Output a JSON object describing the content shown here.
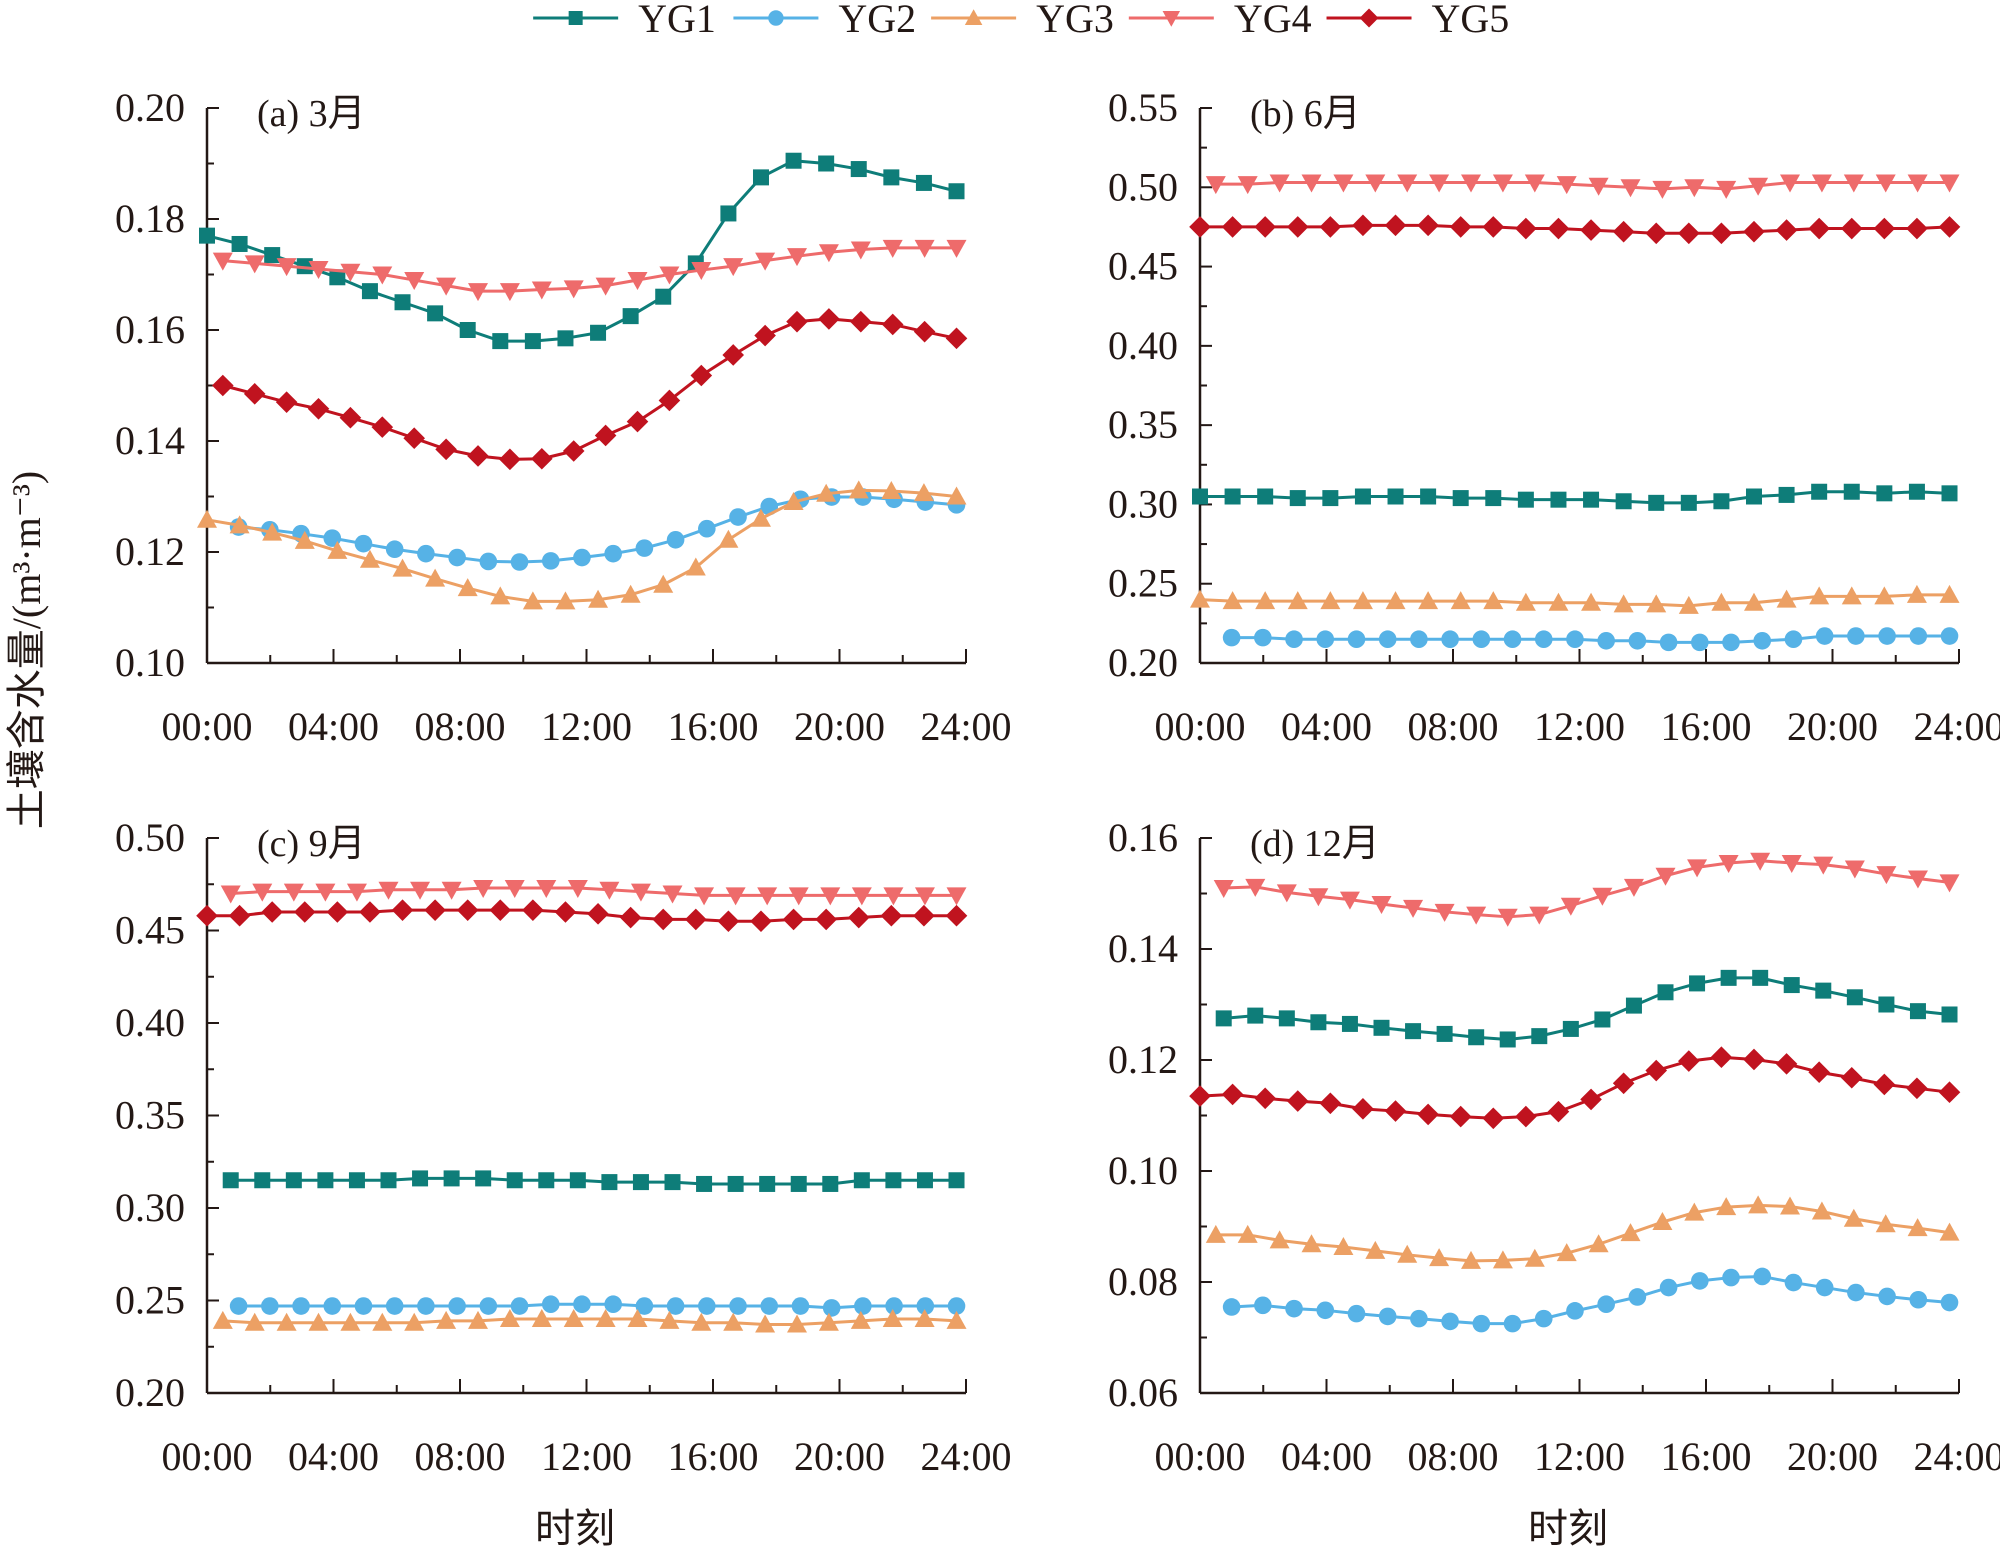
{
  "chart_data": {
    "type": "line",
    "figure": "4-panel diurnal soil moisture comparison",
    "ylabel": "土壤含水量/(m³·m⁻³)",
    "xlabel": "时刻",
    "legend_position": "top-center",
    "legend": [
      {
        "name": "YG1",
        "color": "#0e7d79",
        "marker": "square"
      },
      {
        "name": "YG2",
        "color": "#56b2e6",
        "marker": "circle"
      },
      {
        "name": "YG3",
        "color": "#eca064",
        "marker": "triangle-up"
      },
      {
        "name": "YG4",
        "color": "#ee6b6b",
        "marker": "triangle-down"
      },
      {
        "name": "YG5",
        "color": "#c0131f",
        "marker": "diamond"
      }
    ],
    "x_tick_labels": [
      "00:00",
      "04:00",
      "08:00",
      "12:00",
      "16:00",
      "20:00",
      "24:00"
    ],
    "x_range_hours": [
      0,
      24
    ],
    "panels": [
      {
        "title": "(a) 3月",
        "ylim": [
          0.1,
          0.2
        ],
        "y_ticks": [
          "0.10",
          "0.12",
          "0.14",
          "0.16",
          "0.18",
          "0.20"
        ],
        "y_tick_values": [
          0.1,
          0.12,
          0.14,
          0.16,
          0.18,
          0.2
        ],
        "series": [
          {
            "name": "YG1",
            "x_start": 0.0,
            "values": [
              0.177,
              0.1755,
              0.1735,
              0.1715,
              0.1695,
              0.167,
              0.165,
              0.163,
              0.16,
              0.158,
              0.158,
              0.1585,
              0.1595,
              0.1625,
              0.166,
              0.172,
              0.181,
              0.1875,
              0.1905,
              0.19,
              0.189,
              0.1875,
              0.1865,
              0.185
            ]
          },
          {
            "name": "YG2",
            "x_start": 1.0,
            "values": [
              0.1245,
              0.124,
              0.1233,
              0.1225,
              0.1215,
              0.1205,
              0.1197,
              0.119,
              0.1183,
              0.1182,
              0.1184,
              0.119,
              0.1197,
              0.1207,
              0.1222,
              0.1242,
              0.1263,
              0.1282,
              0.1295,
              0.1299,
              0.1299,
              0.1295,
              0.129,
              0.1285
            ]
          },
          {
            "name": "YG3",
            "x_start": 0.0,
            "values": [
              0.1258,
              0.1248,
              0.1235,
              0.122,
              0.1202,
              0.1186,
              0.117,
              0.1152,
              0.1135,
              0.112,
              0.1111,
              0.1111,
              0.1114,
              0.1123,
              0.1141,
              0.1172,
              0.1222,
              0.126,
              0.129,
              0.1305,
              0.1311,
              0.131,
              0.1306,
              0.13
            ]
          },
          {
            "name": "YG4",
            "x_start": 0.5,
            "values": [
              0.1725,
              0.172,
              0.1715,
              0.171,
              0.1705,
              0.17,
              0.169,
              0.168,
              0.167,
              0.167,
              0.1673,
              0.1675,
              0.168,
              0.169,
              0.17,
              0.1708,
              0.1715,
              0.1725,
              0.1733,
              0.174,
              0.1745,
              0.1748,
              0.1748,
              0.1748
            ]
          },
          {
            "name": "YG5",
            "x_start": 0.5,
            "values": [
              0.15,
              0.1485,
              0.147,
              0.1458,
              0.1442,
              0.1425,
              0.1405,
              0.1385,
              0.1373,
              0.1367,
              0.1368,
              0.1382,
              0.141,
              0.1435,
              0.1473,
              0.1518,
              0.1555,
              0.159,
              0.1615,
              0.162,
              0.1615,
              0.161,
              0.1597,
              0.1585
            ]
          }
        ]
      },
      {
        "title": "(b) 6月",
        "ylim": [
          0.2,
          0.55
        ],
        "y_ticks": [
          "0.20",
          "0.25",
          "0.30",
          "0.35",
          "0.40",
          "0.45",
          "0.50",
          "0.55"
        ],
        "y_tick_values": [
          0.2,
          0.25,
          0.3,
          0.35,
          0.4,
          0.45,
          0.5,
          0.55
        ],
        "series": [
          {
            "name": "YG1",
            "x_start": 0.0,
            "values": [
              0.305,
              0.305,
              0.305,
              0.304,
              0.304,
              0.305,
              0.305,
              0.305,
              0.304,
              0.304,
              0.303,
              0.303,
              0.303,
              0.302,
              0.301,
              0.301,
              0.302,
              0.305,
              0.306,
              0.308,
              0.308,
              0.307,
              0.308,
              0.307
            ]
          },
          {
            "name": "YG2",
            "x_start": 1.0,
            "values": [
              0.216,
              0.216,
              0.215,
              0.215,
              0.215,
              0.215,
              0.215,
              0.215,
              0.215,
              0.215,
              0.215,
              0.215,
              0.214,
              0.214,
              0.213,
              0.213,
              0.213,
              0.214,
              0.215,
              0.217,
              0.217,
              0.217,
              0.217,
              0.217
            ]
          },
          {
            "name": "YG3",
            "x_start": 0.0,
            "values": [
              0.24,
              0.239,
              0.239,
              0.239,
              0.239,
              0.239,
              0.239,
              0.239,
              0.239,
              0.239,
              0.238,
              0.238,
              0.238,
              0.237,
              0.237,
              0.236,
              0.238,
              0.238,
              0.24,
              0.242,
              0.242,
              0.242,
              0.243,
              0.243
            ]
          },
          {
            "name": "YG4",
            "x_start": 0.5,
            "values": [
              0.502,
              0.502,
              0.503,
              0.503,
              0.503,
              0.503,
              0.503,
              0.503,
              0.503,
              0.503,
              0.503,
              0.502,
              0.501,
              0.5,
              0.499,
              0.5,
              0.499,
              0.501,
              0.503,
              0.503,
              0.503,
              0.503,
              0.503,
              0.503
            ]
          },
          {
            "name": "YG5",
            "x_start": 0.0,
            "values": [
              0.475,
              0.475,
              0.475,
              0.475,
              0.475,
              0.476,
              0.476,
              0.476,
              0.475,
              0.475,
              0.474,
              0.474,
              0.473,
              0.472,
              0.471,
              0.471,
              0.471,
              0.472,
              0.473,
              0.474,
              0.474,
              0.474,
              0.474,
              0.475
            ]
          }
        ]
      },
      {
        "title": "(c) 9月",
        "ylim": [
          0.2,
          0.5
        ],
        "y_ticks": [
          "0.20",
          "0.25",
          "0.30",
          "0.35",
          "0.40",
          "0.45",
          "0.50"
        ],
        "y_tick_values": [
          0.2,
          0.25,
          0.3,
          0.35,
          0.4,
          0.45,
          0.5
        ],
        "series": [
          {
            "name": "YG1",
            "x_start": 0.75,
            "values": [
              0.315,
              0.315,
              0.315,
              0.315,
              0.315,
              0.315,
              0.316,
              0.316,
              0.316,
              0.315,
              0.315,
              0.315,
              0.314,
              0.314,
              0.314,
              0.313,
              0.313,
              0.313,
              0.313,
              0.313,
              0.315,
              0.315,
              0.315,
              0.315
            ]
          },
          {
            "name": "YG2",
            "x_start": 1.0,
            "values": [
              0.247,
              0.247,
              0.247,
              0.247,
              0.247,
              0.247,
              0.247,
              0.247,
              0.247,
              0.247,
              0.248,
              0.248,
              0.248,
              0.247,
              0.247,
              0.247,
              0.247,
              0.247,
              0.247,
              0.246,
              0.247,
              0.247,
              0.247,
              0.247
            ]
          },
          {
            "name": "YG3",
            "x_start": 0.5,
            "values": [
              0.239,
              0.238,
              0.238,
              0.238,
              0.238,
              0.238,
              0.238,
              0.239,
              0.239,
              0.24,
              0.24,
              0.24,
              0.24,
              0.24,
              0.239,
              0.238,
              0.238,
              0.237,
              0.237,
              0.238,
              0.239,
              0.24,
              0.24,
              0.239
            ]
          },
          {
            "name": "YG4",
            "x_start": 0.75,
            "values": [
              0.47,
              0.471,
              0.471,
              0.471,
              0.471,
              0.472,
              0.472,
              0.472,
              0.473,
              0.473,
              0.473,
              0.473,
              0.472,
              0.471,
              0.47,
              0.469,
              0.469,
              0.469,
              0.469,
              0.469,
              0.469,
              0.469,
              0.469,
              0.469
            ]
          },
          {
            "name": "YG5",
            "x_start": 0.0,
            "values": [
              0.458,
              0.458,
              0.46,
              0.46,
              0.46,
              0.46,
              0.461,
              0.461,
              0.461,
              0.461,
              0.461,
              0.46,
              0.459,
              0.457,
              0.456,
              0.456,
              0.455,
              0.455,
              0.456,
              0.456,
              0.457,
              0.458,
              0.458,
              0.458
            ]
          }
        ]
      },
      {
        "title": "(d) 12月",
        "ylim": [
          0.06,
          0.16
        ],
        "y_ticks": [
          "0.06",
          "0.08",
          "0.10",
          "0.12",
          "0.14",
          "0.16"
        ],
        "y_tick_values": [
          0.06,
          0.08,
          0.1,
          0.12,
          0.14,
          0.16
        ],
        "series": [
          {
            "name": "YG1",
            "x_start": 0.75,
            "values": [
              0.1275,
              0.128,
              0.1275,
              0.1268,
              0.1265,
              0.1258,
              0.1252,
              0.1247,
              0.1241,
              0.1237,
              0.1243,
              0.1256,
              0.1273,
              0.1298,
              0.1322,
              0.1338,
              0.1348,
              0.1348,
              0.1335,
              0.1325,
              0.1313,
              0.13,
              0.1288,
              0.1282
            ]
          },
          {
            "name": "YG2",
            "x_start": 1.0,
            "values": [
              0.0755,
              0.0758,
              0.0752,
              0.0749,
              0.0743,
              0.0738,
              0.0734,
              0.0729,
              0.0725,
              0.0725,
              0.0734,
              0.0748,
              0.076,
              0.0773,
              0.079,
              0.0802,
              0.0808,
              0.081,
              0.0799,
              0.079,
              0.0781,
              0.0774,
              0.0768,
              0.0763
            ]
          },
          {
            "name": "YG3",
            "x_start": 0.5,
            "values": [
              0.0885,
              0.0885,
              0.0875,
              0.0868,
              0.0863,
              0.0856,
              0.0849,
              0.0843,
              0.0838,
              0.0839,
              0.0842,
              0.0852,
              0.0868,
              0.0888,
              0.0908,
              0.0925,
              0.0935,
              0.0938,
              0.0936,
              0.0927,
              0.0914,
              0.0904,
              0.0897,
              0.0889
            ]
          },
          {
            "name": "YG4",
            "x_start": 0.75,
            "values": [
              0.151,
              0.1512,
              0.1502,
              0.1495,
              0.1489,
              0.1481,
              0.1474,
              0.1467,
              0.1462,
              0.1458,
              0.1462,
              0.1478,
              0.1496,
              0.1512,
              0.1532,
              0.1547,
              0.1555,
              0.1559,
              0.1555,
              0.1552,
              0.1545,
              0.1535,
              0.1527,
              0.152
            ]
          },
          {
            "name": "YG5",
            "x_start": 0.0,
            "values": [
              0.1135,
              0.1138,
              0.1131,
              0.1126,
              0.1122,
              0.1112,
              0.1108,
              0.1102,
              0.1098,
              0.1095,
              0.1098,
              0.1107,
              0.1129,
              0.1158,
              0.1181,
              0.1198,
              0.1205,
              0.1201,
              0.1193,
              0.1178,
              0.1168,
              0.1156,
              0.1149,
              0.1142
            ]
          }
        ]
      }
    ]
  }
}
